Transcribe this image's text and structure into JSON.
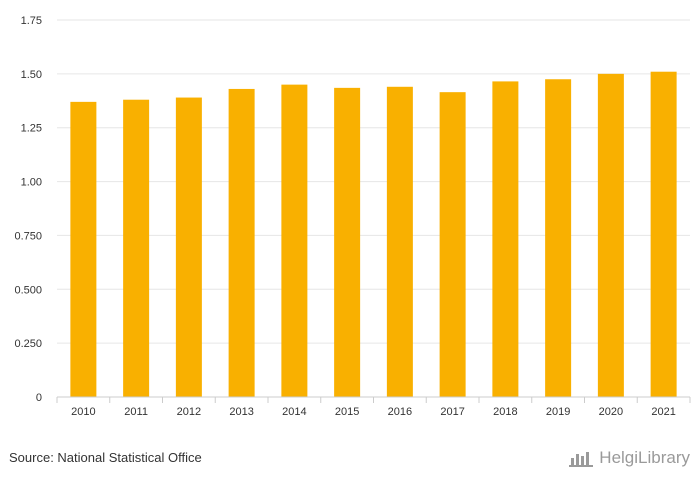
{
  "chart_data": {
    "type": "bar",
    "categories": [
      "2010",
      "2011",
      "2012",
      "2013",
      "2014",
      "2015",
      "2016",
      "2017",
      "2018",
      "2019",
      "2020",
      "2021"
    ],
    "values": [
      1.37,
      1.38,
      1.39,
      1.43,
      1.45,
      1.435,
      1.44,
      1.415,
      1.465,
      1.475,
      1.5,
      1.51
    ],
    "ylim": [
      0,
      1.75
    ],
    "yticks": [
      0,
      0.25,
      0.5,
      0.75,
      1.0,
      1.25,
      1.5,
      1.75
    ],
    "ytick_labels": [
      "0",
      "0.250",
      "0.500",
      "0.750",
      "1.00",
      "1.25",
      "1.50",
      "1.75"
    ],
    "bar_color": "#f9b000",
    "grid": true,
    "title": "",
    "xlabel": "",
    "ylabel": ""
  },
  "footer": {
    "source": "Source: National Statistical Office",
    "brand": "HelgiLibrary",
    "brand_icon": "helgi-logo-icon"
  }
}
